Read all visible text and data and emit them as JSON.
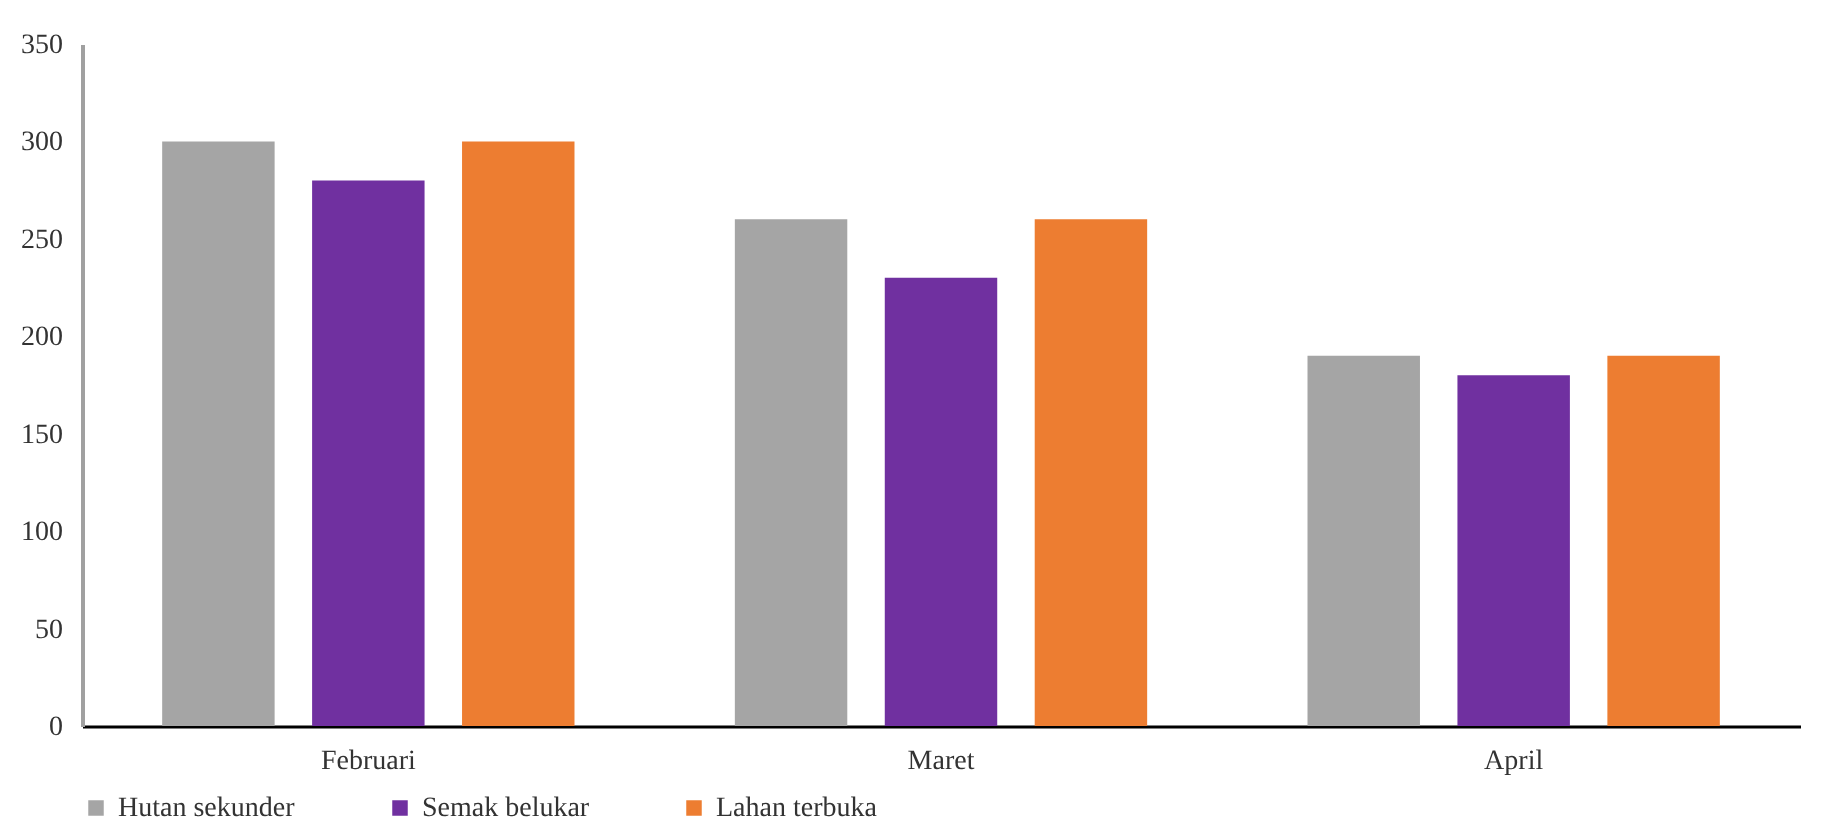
{
  "chart_data": {
    "type": "bar",
    "categories": [
      "Februari",
      "Maret",
      "April"
    ],
    "series": [
      {
        "name": "Hutan sekunder",
        "color": "#a5a5a5",
        "values": [
          300,
          260,
          190
        ]
      },
      {
        "name": "Semak belukar",
        "color": "#7030a0",
        "values": [
          280,
          230,
          180
        ]
      },
      {
        "name": "Lahan terbuka",
        "color": "#ed7d31",
        "values": [
          300,
          260,
          190
        ]
      }
    ],
    "ylim": [
      0,
      350
    ],
    "yticks": [
      0,
      50,
      100,
      150,
      200,
      250,
      300,
      350
    ],
    "grid": false,
    "legend": "bottom"
  }
}
